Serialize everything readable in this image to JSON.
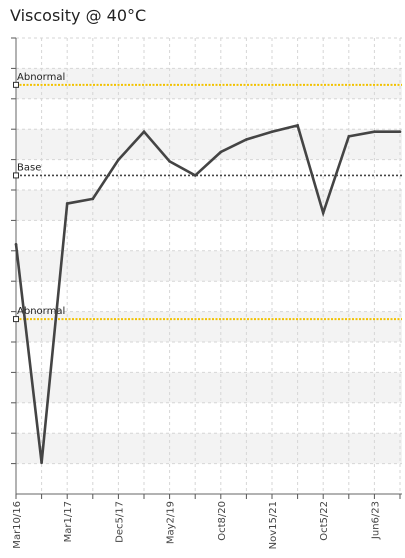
{
  "chart_data": {
    "type": "line",
    "title": "Viscosity @ 40°C",
    "grid": true,
    "x": [
      "Mar10/16",
      "",
      "Mar1/17",
      "",
      "Dec5/17",
      "",
      "May2/19",
      "",
      "Oct8/20",
      "",
      "Nov15/21",
      "",
      "Oct5/22",
      "",
      "Jun6/23",
      ""
    ],
    "x_tick_labels": [
      "Mar10/16",
      "Mar1/17",
      "Dec5/17",
      "May2/19",
      "Oct8/20",
      "Nov15/21",
      "Oct5/22",
      "Jun6/23"
    ],
    "series": [
      {
        "values": [
          7.0,
          0.0,
          8.3,
          8.45,
          9.7,
          10.6,
          9.65,
          9.2,
          9.95,
          10.35,
          10.6,
          10.8,
          8.0,
          10.45,
          10.6,
          10.6
        ],
        "color": "#444444"
      }
    ],
    "reference_lines": [
      {
        "label": "Abnormal",
        "value": 12.1,
        "color": "#f2c200",
        "style": "dotted"
      },
      {
        "label": "Base",
        "value": 9.2,
        "color": "#444444",
        "style": "dotted"
      },
      {
        "label": "Abnormal",
        "value": 4.6,
        "color": "#f2c200",
        "style": "dotted"
      }
    ],
    "ylim": [
      -1.0,
      13.6
    ]
  }
}
